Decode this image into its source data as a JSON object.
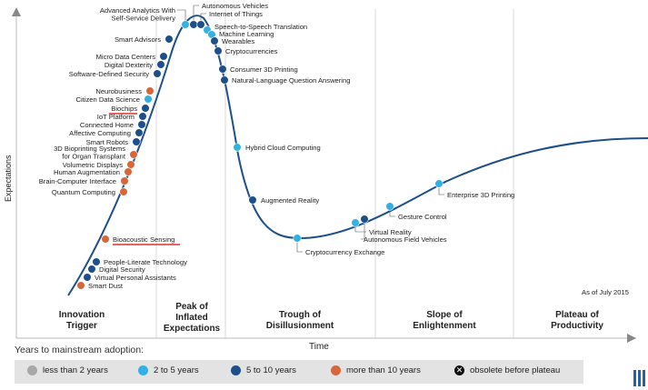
{
  "axis": {
    "y_label": "Expectations",
    "x_label": "Time"
  },
  "as_of": "As of July 2015",
  "colors": {
    "less_than_2": "#a8a8a8",
    "two_to_five": "#33b0e4",
    "five_to_ten": "#1d4f8a",
    "more_than_10": "#d9663a",
    "underline": "#e0302c"
  },
  "phases": [
    {
      "lines": [
        "Innovation",
        "Trigger"
      ]
    },
    {
      "lines": [
        "Peak of",
        "Inflated",
        "Expectations"
      ]
    },
    {
      "lines": [
        "Trough of",
        "Disillusionment"
      ]
    },
    {
      "lines": [
        "Slope of",
        "Enlightenment"
      ]
    },
    {
      "lines": [
        "Plateau of",
        "Productivity"
      ]
    }
  ],
  "technologies": [
    {
      "name": "Smart Dust",
      "cat": "more_than_10"
    },
    {
      "name": "Virtual Personal Assistants",
      "cat": "five_to_ten"
    },
    {
      "name": "Digital Security",
      "cat": "five_to_ten"
    },
    {
      "name": "People-Literate Technology",
      "cat": "five_to_ten"
    },
    {
      "name": "Bioacoustic Sensing",
      "cat": "more_than_10",
      "underline": true
    },
    {
      "name": "Quantum Computing",
      "cat": "more_than_10"
    },
    {
      "name": "Brain-Computer Interface",
      "cat": "more_than_10"
    },
    {
      "name": "Human Augmentation",
      "cat": "more_than_10"
    },
    {
      "name": "Volumetric Displays",
      "cat": "more_than_10"
    },
    {
      "name": "3D Bioprinting Systems\nfor Organ Transplant",
      "cat": "more_than_10"
    },
    {
      "name": "Smart Robots",
      "cat": "five_to_ten"
    },
    {
      "name": "Affective Computing",
      "cat": "five_to_ten"
    },
    {
      "name": "Connected Home",
      "cat": "five_to_ten"
    },
    {
      "name": "IoT Platform",
      "cat": "five_to_ten"
    },
    {
      "name": "Biochips",
      "cat": "five_to_ten",
      "underline": true
    },
    {
      "name": "Citizen Data Science",
      "cat": "two_to_five"
    },
    {
      "name": "Neurobusiness",
      "cat": "more_than_10"
    },
    {
      "name": "Software-Defined Security",
      "cat": "five_to_ten"
    },
    {
      "name": "Digital Dexterity",
      "cat": "five_to_ten"
    },
    {
      "name": "Micro Data Centers",
      "cat": "five_to_ten"
    },
    {
      "name": "Smart Advisors",
      "cat": "five_to_ten"
    },
    {
      "name": "Advanced Analytics With\nSelf-Service Delivery",
      "cat": "two_to_five"
    },
    {
      "name": "Autonomous Vehicles",
      "cat": "five_to_ten"
    },
    {
      "name": "Internet of Things",
      "cat": "five_to_ten"
    },
    {
      "name": "Speech-to-Speech Translation",
      "cat": "two_to_five"
    },
    {
      "name": "Machine Learning",
      "cat": "two_to_five"
    },
    {
      "name": "Wearables",
      "cat": "five_to_ten"
    },
    {
      "name": "Cryptocurrencies",
      "cat": "five_to_ten"
    },
    {
      "name": "Consumer 3D Printing",
      "cat": "five_to_ten"
    },
    {
      "name": "Natural-Language Question Answering",
      "cat": "five_to_ten"
    },
    {
      "name": "Hybrid Cloud Computing",
      "cat": "two_to_five"
    },
    {
      "name": "Augmented Reality",
      "cat": "five_to_ten"
    },
    {
      "name": "Cryptocurrency Exchange",
      "cat": "two_to_five"
    },
    {
      "name": "Virtual Reality",
      "cat": "two_to_five"
    },
    {
      "name": "Autonomous Field Vehicles",
      "cat": "five_to_ten"
    },
    {
      "name": "Gesture Control",
      "cat": "two_to_five"
    },
    {
      "name": "Enterprise 3D Printing",
      "cat": "two_to_five"
    }
  ],
  "legend": {
    "title": "Years to mainstream adoption:",
    "items": [
      {
        "label": "less than 2 years",
        "color": "#a8a8a8"
      },
      {
        "label": "2 to 5 years",
        "color": "#33b0e4"
      },
      {
        "label": "5 to 10 years",
        "color": "#1d4f8a"
      },
      {
        "label": "more than 10 years",
        "color": "#d9663a"
      }
    ],
    "obsolete_label": "obsolete before plateau"
  }
}
